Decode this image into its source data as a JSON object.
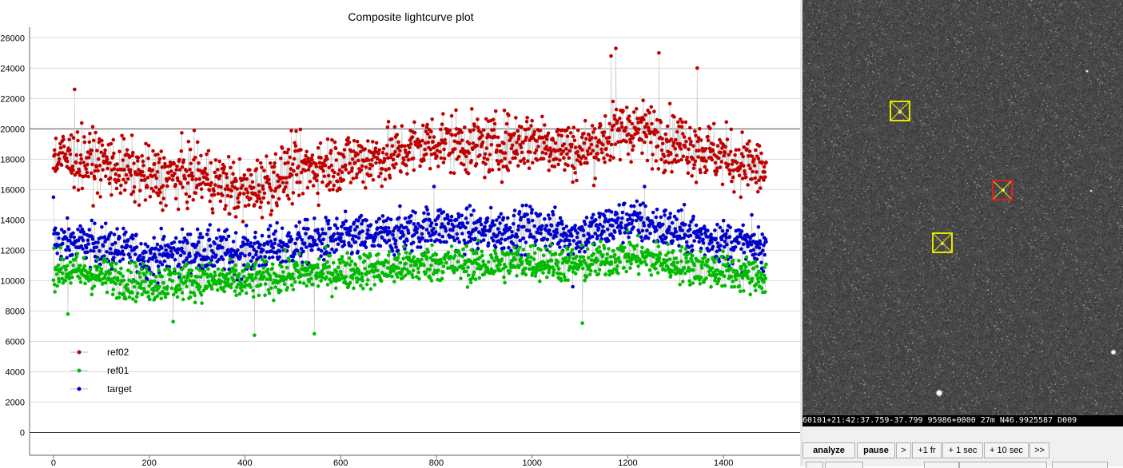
{
  "chart_data": {
    "type": "scatter",
    "title": "Composite lightcurve plot",
    "xlabel": "",
    "ylabel": "",
    "xlim": [
      -50,
      1560
    ],
    "ylim": [
      -1500,
      26700
    ],
    "x_ticks": [
      0,
      200,
      400,
      600,
      800,
      1000,
      1200,
      1400
    ],
    "y_ticks": [
      0,
      2000,
      4000,
      6000,
      8000,
      10000,
      12000,
      14000,
      16000,
      18000,
      20000,
      22000,
      24000,
      26000
    ],
    "x_tick_labels": [
      "0",
      "200",
      "400",
      "600",
      "800",
      "1000",
      "1200",
      "1400"
    ],
    "y_tick_labels": [
      "0",
      "2000",
      "4000",
      "6000",
      "8000",
      "10000",
      "12000",
      "14000",
      "16000",
      "18000",
      "20000",
      "22000",
      "24000",
      "26000"
    ],
    "grid": true,
    "legend_position": "lower-left",
    "n_points": 1490,
    "series": [
      {
        "name": "ref02",
        "color": "#c00000",
        "profile_x": [
          0,
          100,
          200,
          300,
          400,
          500,
          600,
          700,
          800,
          900,
          1000,
          1100,
          1200,
          1300,
          1400,
          1490
        ],
        "profile_mean": [
          18200,
          17800,
          16800,
          17000,
          15800,
          17300,
          17800,
          18200,
          19200,
          18800,
          19300,
          18500,
          20100,
          19200,
          18200,
          17200
        ],
        "spread": 1800,
        "notable_points": [
          [
            44,
            22600
          ],
          [
            1175,
            25300
          ],
          [
            1165,
            24800
          ],
          [
            1265,
            25000
          ],
          [
            1345,
            24000
          ],
          [
            420,
            15000
          ]
        ]
      },
      {
        "name": "ref01",
        "color": "#00bb00",
        "profile_x": [
          0,
          100,
          200,
          300,
          400,
          500,
          600,
          700,
          800,
          900,
          1000,
          1100,
          1200,
          1300,
          1400,
          1490
        ],
        "profile_mean": [
          10800,
          10300,
          9800,
          10000,
          9900,
          10400,
          10600,
          10800,
          11200,
          11000,
          11300,
          11000,
          11700,
          11100,
          10600,
          10200
        ],
        "spread": 1100,
        "notable_points": [
          [
            420,
            6400
          ],
          [
            545,
            6500
          ],
          [
            250,
            7300
          ],
          [
            1105,
            7200
          ],
          [
            30,
            7800
          ]
        ]
      },
      {
        "name": "target",
        "color": "#0000cc",
        "profile_x": [
          0,
          100,
          200,
          300,
          400,
          500,
          600,
          700,
          800,
          900,
          1000,
          1100,
          1200,
          1300,
          1400,
          1490
        ],
        "profile_mean": [
          12600,
          12300,
          11600,
          12000,
          11800,
          12400,
          12800,
          13000,
          13600,
          13200,
          13500,
          13000,
          14000,
          13300,
          12600,
          12100
        ],
        "spread": 1300,
        "notable_points": [
          [
            0,
            15500
          ],
          [
            795,
            16200
          ],
          [
            1235,
            16200
          ],
          [
            1085,
            9600
          ]
        ]
      }
    ]
  },
  "reference_line_y": 20000,
  "image_panel": {
    "apertures": [
      {
        "role": "comparison"
      },
      {
        "role": "target"
      },
      {
        "role": "comparison"
      }
    ],
    "timestamp_text": "60101+21:42:37.759-37.799 95986+0000   27m N46.9925587 D009"
  },
  "controls": {
    "analyze_label": "analyze",
    "pause_label": "pause",
    "step_label": ">",
    "plus_frame_label": "+1 fr",
    "plus_1sec_label": "+ 1 sec",
    "plus_10sec_label": "+ 10 sec",
    "fast_forward_label": ">>"
  }
}
